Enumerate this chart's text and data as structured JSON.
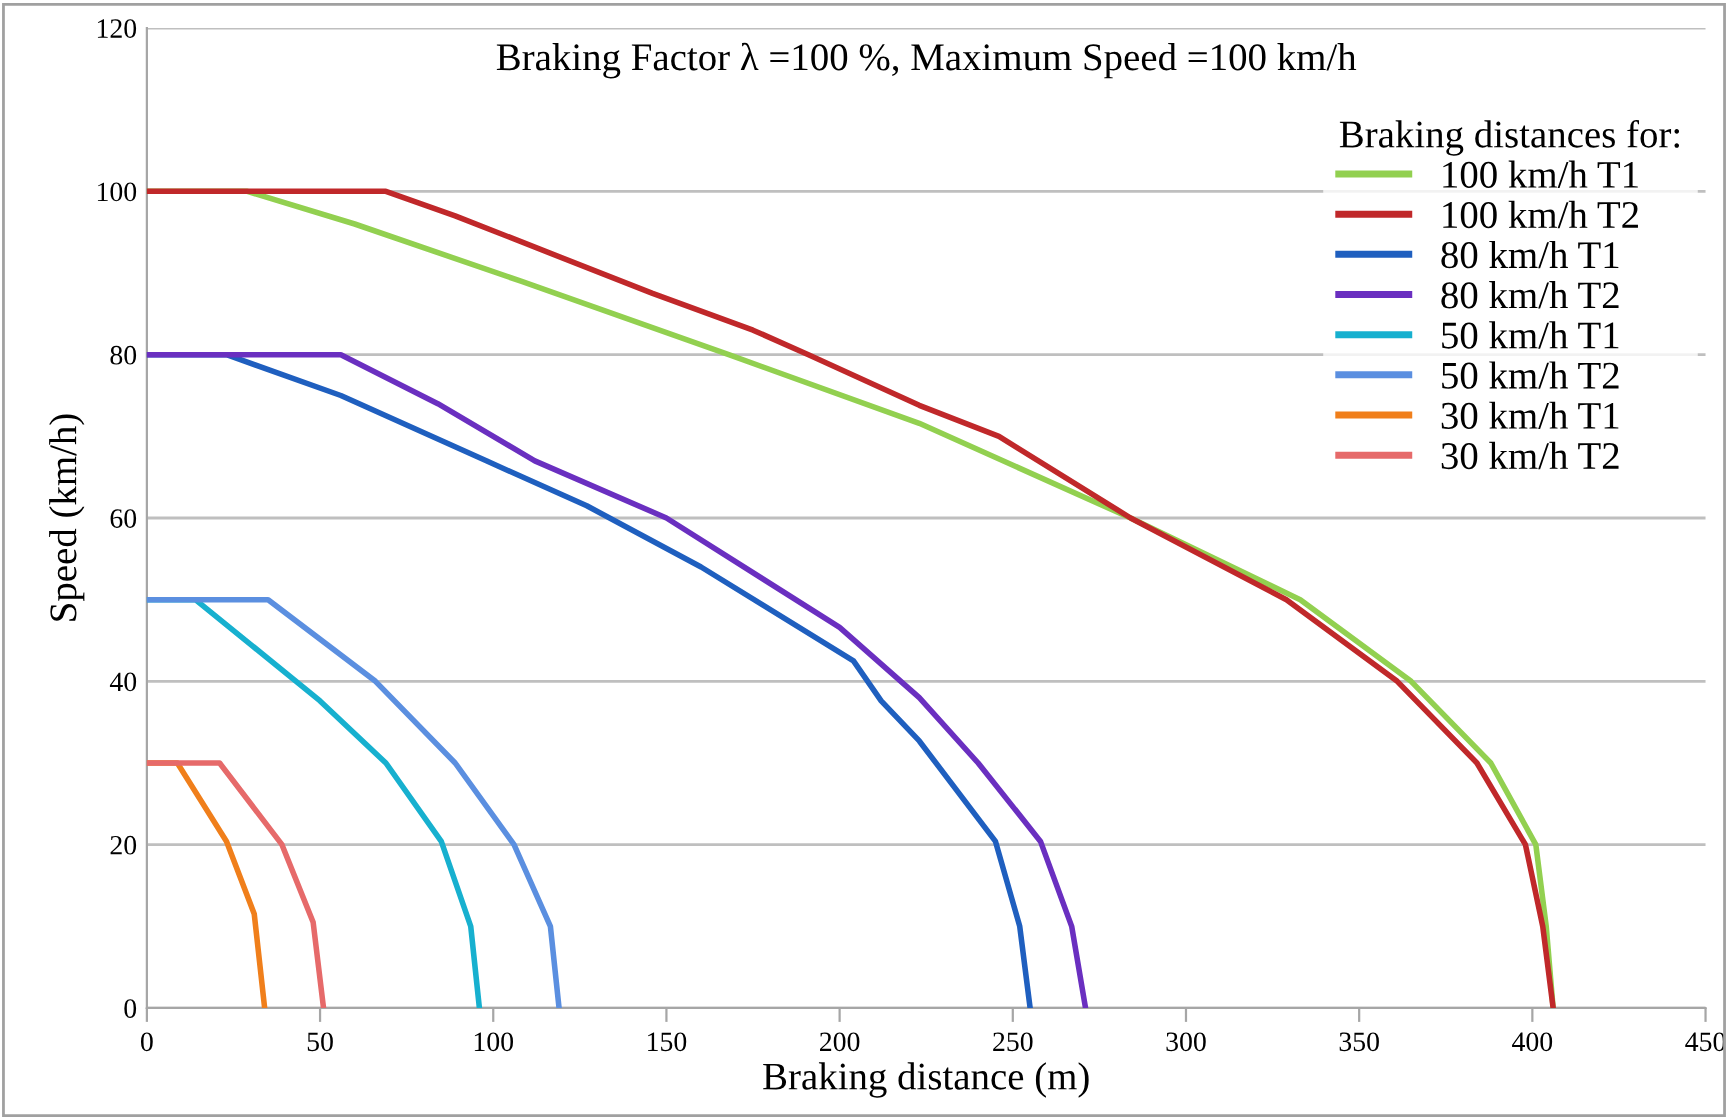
{
  "chart_data": {
    "type": "line",
    "title": "Braking Factor λ =100 %, Maximum Speed =100 km/h",
    "xlabel": "Braking distance (m)",
    "ylabel": "Speed (km/h)",
    "legend_title": "Braking distances for:",
    "series": [
      {
        "name": "100 km/h T1",
        "color": "#92d050",
        "x": [
          0,
          29,
          60,
          108,
          168,
          223,
          284,
          333,
          365,
          388,
          401,
          404,
          406
        ],
        "values": [
          100,
          100,
          96,
          89,
          80,
          71.6,
          60,
          50,
          40,
          30,
          20,
          10,
          0
        ]
      },
      {
        "name": "100 km/h T2",
        "color": "#c0282a",
        "x": [
          0,
          69,
          89,
          146,
          175,
          191,
          223,
          246,
          284,
          329,
          361,
          384,
          398,
          403,
          406
        ],
        "values": [
          100,
          100,
          97,
          87.5,
          83,
          80,
          73.8,
          70,
          60,
          50,
          40,
          30,
          20,
          10,
          0
        ]
      },
      {
        "name": "80 km/h T1",
        "color": "#1f5fbf",
        "x": [
          0,
          23,
          56,
          98,
          127,
          160,
          204,
          212,
          223,
          245,
          252,
          255
        ],
        "values": [
          80,
          80,
          75,
          67,
          61.5,
          54,
          42.5,
          37.6,
          32.7,
          20.4,
          10,
          0
        ]
      },
      {
        "name": "80 km/h T2",
        "color": "#6a2fc0",
        "x": [
          0,
          56,
          84,
          112,
          150,
          200,
          223,
          240,
          258,
          267,
          271
        ],
        "values": [
          80,
          80,
          74,
          67,
          60,
          46.6,
          38,
          30,
          20.4,
          10,
          0
        ]
      },
      {
        "name": "50 km/h T1",
        "color": "#17b0cf",
        "x": [
          0,
          14,
          30,
          50,
          69,
          85,
          93.5,
          96
        ],
        "values": [
          50,
          50,
          44.5,
          37.6,
          30,
          20.4,
          10,
          0
        ]
      },
      {
        "name": "50 km/h T2",
        "color": "#5b8fe0",
        "x": [
          0,
          35,
          66,
          89,
          106,
          116.5,
          119
        ],
        "values": [
          50,
          50,
          40,
          30,
          20,
          10,
          0
        ]
      },
      {
        "name": "30 km/h T1",
        "color": "#f07f1b",
        "x": [
          0,
          8.8,
          23,
          31,
          34
        ],
        "values": [
          30,
          30,
          20.4,
          11.5,
          0
        ]
      },
      {
        "name": "30 km/h T2",
        "color": "#e66a6a",
        "x": [
          0,
          21,
          39,
          48,
          51
        ],
        "values": [
          30,
          30,
          20,
          10.5,
          0
        ]
      }
    ],
    "xlim": [
      0,
      450
    ],
    "xticks": [
      0,
      50,
      100,
      150,
      200,
      250,
      300,
      350,
      400,
      450
    ],
    "ylim": [
      0,
      120
    ],
    "yticks": [
      0,
      20,
      40,
      60,
      80,
      100,
      120
    ],
    "grid": "y",
    "legend": "top right",
    "marker": "none",
    "line_style": "solid"
  }
}
